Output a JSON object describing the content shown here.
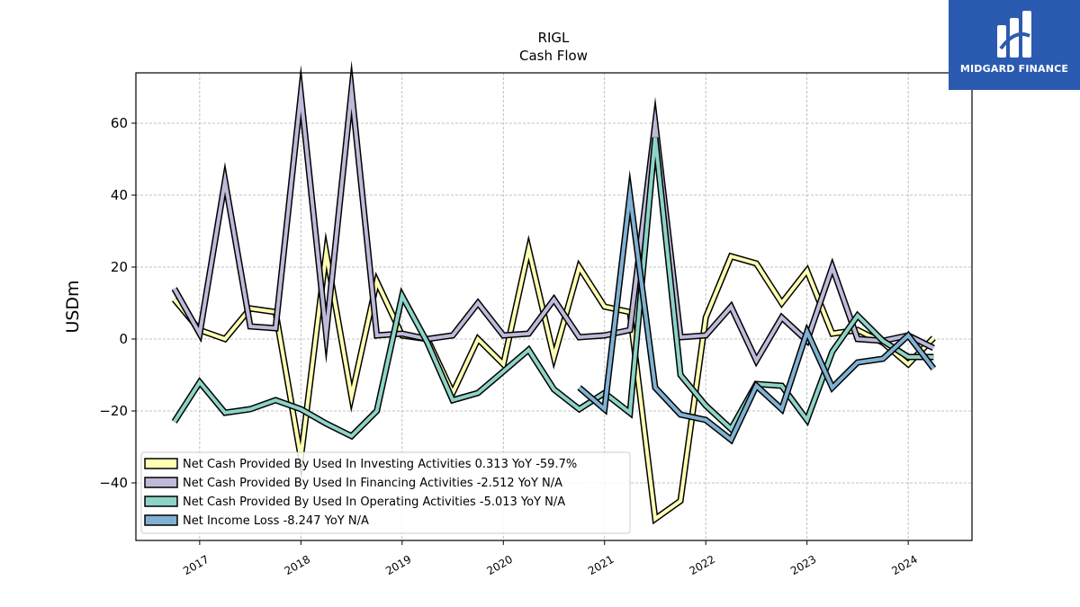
{
  "brand": {
    "name": "MIDGARD FINANCE",
    "bg_color": "#2b5bb0"
  },
  "chart_data": {
    "type": "line",
    "title": "RIGL",
    "subtitle": "Cash Flow",
    "ylabel": "USDm",
    "xlabel": "",
    "ylim": [
      -56,
      74
    ],
    "yticks": [
      -40,
      -20,
      0,
      20,
      40,
      60
    ],
    "xlim": [
      2016.37,
      2024.63
    ],
    "xticks": [
      2017,
      2018,
      2019,
      2020,
      2021,
      2022,
      2023,
      2024
    ],
    "xtick_labels": [
      "2017",
      "2018",
      "2019",
      "2020",
      "2021",
      "2022",
      "2023",
      "2024"
    ],
    "grid": true,
    "legend_position": "lower-left",
    "series": [
      {
        "name": "Net Cash Provided By Used In Investing Activities",
        "legend_label": "Net Cash Provided By Used In Investing Activities  0.313 YoY -59.7%",
        "color": "#ffffb3",
        "points": [
          [
            2016.75,
            11
          ],
          [
            2017.0,
            2.5
          ],
          [
            2017.25,
            0
          ],
          [
            2017.5,
            8.5
          ],
          [
            2017.75,
            7.5
          ],
          [
            2018.0,
            -33
          ],
          [
            2018.25,
            24
          ],
          [
            2018.5,
            -16
          ],
          [
            2018.75,
            16
          ],
          [
            2019.0,
            1
          ],
          [
            2019.25,
            0
          ],
          [
            2019.5,
            -15
          ],
          [
            2019.75,
            0
          ],
          [
            2020.0,
            -7
          ],
          [
            2020.25,
            25
          ],
          [
            2020.5,
            -5
          ],
          [
            2020.75,
            20
          ],
          [
            2021.0,
            9
          ],
          [
            2021.25,
            7.5
          ],
          [
            2021.5,
            -50
          ],
          [
            2021.75,
            -45
          ],
          [
            2022.0,
            6
          ],
          [
            2022.25,
            23
          ],
          [
            2022.5,
            21
          ],
          [
            2022.75,
            10
          ],
          [
            2023.0,
            19
          ],
          [
            2023.25,
            1.5
          ],
          [
            2023.5,
            2.5
          ],
          [
            2023.75,
            -1
          ],
          [
            2024.0,
            -7
          ],
          [
            2024.25,
            0.3
          ]
        ]
      },
      {
        "name": "Net Cash Provided By Used In Financing Activities",
        "legend_label": "Net Cash Provided By Used In Financing Activities  -2.512 YoY N/A",
        "color": "#bebada",
        "points": [
          [
            2016.75,
            14
          ],
          [
            2017.0,
            1.5
          ],
          [
            2017.25,
            44
          ],
          [
            2017.5,
            3.5
          ],
          [
            2017.75,
            3
          ],
          [
            2018.0,
            68
          ],
          [
            2018.25,
            1.5
          ],
          [
            2018.5,
            69
          ],
          [
            2018.75,
            1
          ],
          [
            2019.0,
            1.5
          ],
          [
            2019.25,
            0
          ],
          [
            2019.5,
            1
          ],
          [
            2019.75,
            10
          ],
          [
            2020.0,
            1
          ],
          [
            2020.25,
            1.5
          ],
          [
            2020.5,
            11
          ],
          [
            2020.75,
            0.5
          ],
          [
            2021.0,
            1
          ],
          [
            2021.25,
            2.5
          ],
          [
            2021.5,
            60
          ],
          [
            2021.75,
            0.5
          ],
          [
            2022.0,
            1
          ],
          [
            2022.25,
            9
          ],
          [
            2022.5,
            -6
          ],
          [
            2022.75,
            6
          ],
          [
            2023.0,
            -0.5
          ],
          [
            2023.25,
            20
          ],
          [
            2023.5,
            0
          ],
          [
            2023.75,
            -0.5
          ],
          [
            2024.0,
            1
          ],
          [
            2024.25,
            -2.5
          ]
        ]
      },
      {
        "name": "Net Cash Provided By Used In Operating Activities",
        "legend_label": "Net Cash Provided By Used In Operating Activities  -5.013 YoY N/A",
        "color": "#8dd3c7",
        "points": [
          [
            2016.75,
            -23
          ],
          [
            2017.0,
            -12
          ],
          [
            2017.25,
            -20.5
          ],
          [
            2017.5,
            -19.5
          ],
          [
            2017.75,
            -17
          ],
          [
            2018.0,
            -19.5
          ],
          [
            2018.25,
            -23.5
          ],
          [
            2018.5,
            -27
          ],
          [
            2018.75,
            -20
          ],
          [
            2019.0,
            12
          ],
          [
            2019.25,
            -1
          ],
          [
            2019.5,
            -17
          ],
          [
            2019.75,
            -15
          ],
          [
            2020.0,
            -9
          ],
          [
            2020.25,
            -3
          ],
          [
            2020.5,
            -14
          ],
          [
            2020.75,
            -19.5
          ],
          [
            2021.0,
            -15
          ],
          [
            2021.25,
            -20.5
          ],
          [
            2021.5,
            56
          ],
          [
            2021.75,
            -10
          ],
          [
            2022.0,
            -18.5
          ],
          [
            2022.25,
            -25
          ],
          [
            2022.5,
            -12.5
          ],
          [
            2022.75,
            -13
          ],
          [
            2023.0,
            -22.5
          ],
          [
            2023.25,
            -3.5
          ],
          [
            2023.5,
            6.5
          ],
          [
            2023.75,
            -0.5
          ],
          [
            2024.0,
            -5
          ],
          [
            2024.25,
            -5
          ]
        ]
      },
      {
        "name": "Net Income Loss",
        "legend_label": "Net Income Loss  -8.247 YoY N/A",
        "color": "#80b1d3",
        "points": [
          [
            2020.75,
            -13.5
          ],
          [
            2021.0,
            -19.5
          ],
          [
            2021.25,
            40
          ],
          [
            2021.5,
            -13.5
          ],
          [
            2021.75,
            -21
          ],
          [
            2022.0,
            -22.5
          ],
          [
            2022.25,
            -28
          ],
          [
            2022.5,
            -13
          ],
          [
            2022.75,
            -19.5
          ],
          [
            2023.0,
            2
          ],
          [
            2023.25,
            -13.5
          ],
          [
            2023.5,
            -6.5
          ],
          [
            2023.75,
            -5.5
          ],
          [
            2024.0,
            1
          ],
          [
            2024.25,
            -8.2
          ]
        ]
      }
    ]
  }
}
